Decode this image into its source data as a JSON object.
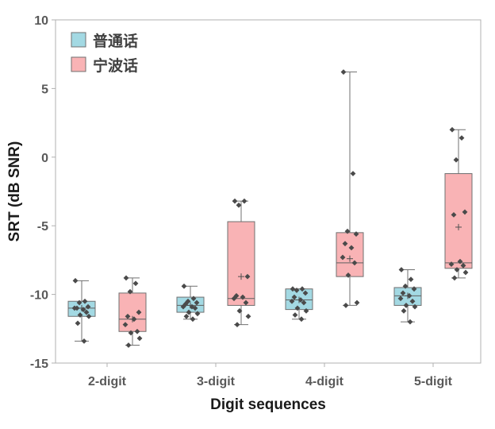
{
  "chart_data": {
    "type": "box",
    "xlabel": "Digit sequences",
    "ylabel": "SRT (dB SNR)",
    "ylim": [
      -15,
      10
    ],
    "yticks": [
      "10",
      "5",
      "0",
      "-5",
      "-10",
      "-15"
    ],
    "ytick_values": [
      10,
      5,
      0,
      -5,
      -10,
      -15
    ],
    "categories": [
      "2-digit",
      "3-digit",
      "4-digit",
      "5-digit"
    ],
    "legend": {
      "position": "top-left"
    },
    "series": [
      {
        "name": "普通话",
        "color": "#a3d9e3",
        "boxes": [
          {
            "whisker_low": -13.4,
            "q1": -11.6,
            "median": -11.0,
            "q3": -10.5,
            "whisker_high": -9.0,
            "mean": -11.0,
            "points": [
              -9.0,
              -10.5,
              -10.6,
              -10.9,
              -11.0,
              -11.1,
              -11.0,
              -11.3,
              -11.5,
              -11.6,
              -12.1,
              -13.4
            ]
          },
          {
            "whisker_low": -11.8,
            "q1": -11.3,
            "median": -10.8,
            "q3": -10.2,
            "whisker_high": -9.4,
            "mean": -10.8,
            "points": [
              -9.4,
              -10.3,
              -10.5,
              -10.6,
              -10.7,
              -10.9,
              -10.9,
              -11.0,
              -11.3,
              -11.4,
              -11.6,
              -11.8
            ]
          },
          {
            "whisker_low": -11.8,
            "q1": -11.1,
            "median": -10.4,
            "q3": -9.6,
            "whisker_high": -9.6,
            "mean": -10.4,
            "points": [
              -9.6,
              -9.6,
              -9.7,
              -9.9,
              -10.2,
              -10.4,
              -10.5,
              -10.6,
              -11.0,
              -11.2,
              -11.5,
              -11.8
            ]
          },
          {
            "whisker_low": -12.0,
            "q1": -10.8,
            "median": -10.1,
            "q3": -9.5,
            "whisker_high": -8.2,
            "mean": -10.1,
            "points": [
              -8.2,
              -8.9,
              -9.4,
              -9.6,
              -9.9,
              -10.1,
              -10.3,
              -10.5,
              -10.8,
              -10.9,
              -11.2,
              -12.0
            ]
          }
        ]
      },
      {
        "name": "宁波话",
        "color": "#f9b3b5",
        "boxes": [
          {
            "whisker_low": -13.7,
            "q1": -12.7,
            "median": -11.8,
            "q3": -9.9,
            "whisker_high": -8.8,
            "mean": -11.8,
            "points": [
              -8.8,
              -9.2,
              -9.8,
              -11.3,
              -11.6,
              -11.8,
              -12.2,
              -12.7,
              -12.8,
              -13.2,
              -13.7
            ]
          },
          {
            "whisker_low": -12.2,
            "q1": -10.8,
            "median": -10.3,
            "q3": -4.7,
            "whisker_high": -3.2,
            "mean": -8.7,
            "points": [
              -3.2,
              -3.2,
              -3.5,
              -8.7,
              -10.1,
              -10.2,
              -10.3,
              -10.6,
              -11.2,
              -11.6,
              -12.2
            ]
          },
          {
            "whisker_low": -10.8,
            "q1": -8.7,
            "median": -7.7,
            "q3": -5.5,
            "whisker_high": 6.2,
            "mean": -7.4,
            "points": [
              6.2,
              -1.2,
              -5.4,
              -5.6,
              -6.3,
              -6.6,
              -7.3,
              -7.7,
              -8.6,
              -10.6,
              -10.8
            ]
          },
          {
            "whisker_low": -8.8,
            "q1": -8.1,
            "median": -7.7,
            "q3": -1.2,
            "whisker_high": 2.0,
            "mean": -5.1,
            "points": [
              2.0,
              1.4,
              -0.2,
              -4.0,
              -4.2,
              -7.6,
              -7.8,
              -7.9,
              -8.2,
              -8.4,
              -8.8
            ]
          }
        ]
      }
    ]
  }
}
